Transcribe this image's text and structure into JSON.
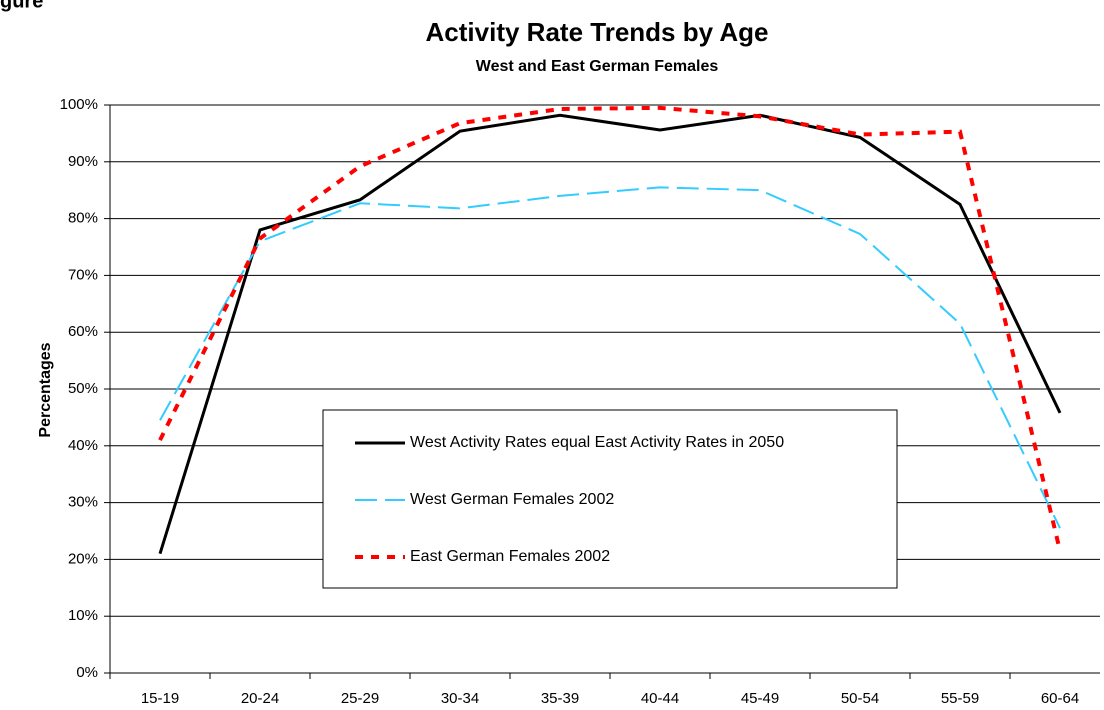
{
  "header": {
    "fragment": "gure"
  },
  "chart_data": {
    "type": "line",
    "title": "Activity Rate Trends by Age",
    "subtitle": "West and East German Females",
    "y_label": "Percentages",
    "categories": [
      "15-19",
      "20-24",
      "25-29",
      "30-34",
      "35-39",
      "40-44",
      "45-49",
      "50-54",
      "55-59",
      "60-64"
    ],
    "series": [
      {
        "name": "West Activity Rates equal East Activity Rates in 2050",
        "color": "#000000",
        "dash": "solid",
        "values": [
          21,
          78,
          83.3,
          95.4,
          98.2,
          95.6,
          98.2,
          94.3,
          82.5,
          45.8
        ]
      },
      {
        "name": "West German Females 2002",
        "color": "#33ccff",
        "dash": "long",
        "values": [
          44.5,
          76,
          82.7,
          81.8,
          84,
          85.5,
          85,
          77.3,
          61.5,
          25.5
        ]
      },
      {
        "name": "East German Females 2002",
        "color": "#ff0000",
        "dash": "short",
        "values": [
          41,
          76.5,
          89.2,
          96.8,
          99.3,
          99.5,
          98,
          94.8,
          95.3,
          21.5
        ]
      }
    ],
    "ylim": [
      0,
      100
    ],
    "yticks": [
      {
        "value": 0,
        "label": "0%"
      },
      {
        "value": 10,
        "label": "10%"
      },
      {
        "value": 20,
        "label": "20%"
      },
      {
        "value": 30,
        "label": "30%"
      },
      {
        "value": 40,
        "label": "40%"
      },
      {
        "value": 50,
        "label": "50%"
      },
      {
        "value": 60,
        "label": "60%"
      },
      {
        "value": 70,
        "label": "70%"
      },
      {
        "value": 80,
        "label": "80%"
      },
      {
        "value": 90,
        "label": "90%"
      },
      {
        "value": 100,
        "label": "100%"
      }
    ],
    "grid": true
  }
}
